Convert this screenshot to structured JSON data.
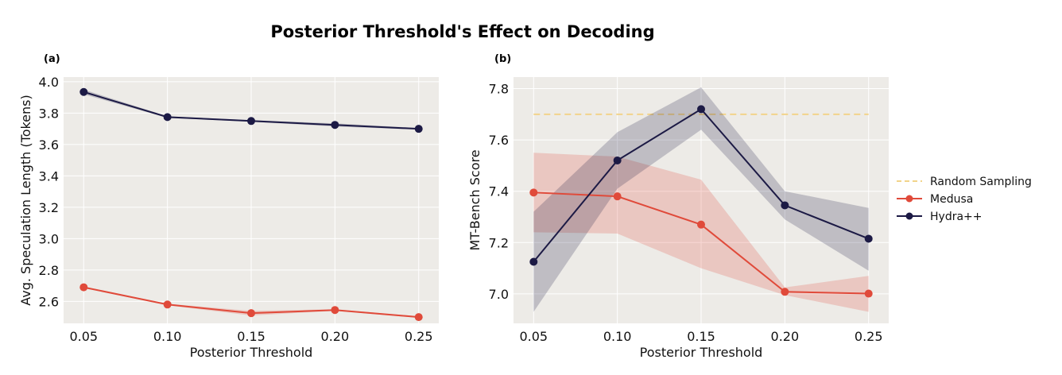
{
  "title": "Posterior Threshold's Effect on Decoding",
  "colors": {
    "medusa": "#e04a3a",
    "hydra": "#1c1a45",
    "random": "#f2d48a",
    "plot_bg": "#edebe7",
    "grid": "#ffffff"
  },
  "legend": {
    "items": [
      {
        "label": "Random Sampling",
        "style": "dashed",
        "color_key": "random"
      },
      {
        "label": "Medusa",
        "style": "line-marker",
        "color_key": "medusa"
      },
      {
        "label": "Hydra++",
        "style": "line-marker",
        "color_key": "hydra"
      }
    ],
    "placement": "right"
  },
  "chart_data": [
    {
      "type": "line",
      "panel_label": "(a)",
      "title": "",
      "xlabel": "Posterior Threshold",
      "ylabel": "Avg. Speculation Length (Tokens)",
      "x": [
        0.05,
        0.1,
        0.15,
        0.2,
        0.25
      ],
      "xticks": [
        "0.05",
        "0.10",
        "0.15",
        "0.20",
        "0.25"
      ],
      "yticks": [
        2.6,
        2.8,
        3.0,
        3.2,
        3.4,
        3.6,
        3.8,
        4.0
      ],
      "ytick_labels": [
        "2.6",
        "2.8",
        "3.0",
        "3.2",
        "3.4",
        "3.6",
        "3.8",
        "4.0"
      ],
      "xlim": [
        0.038,
        0.262
      ],
      "ylim": [
        2.46,
        4.03
      ],
      "grid": true,
      "series": [
        {
          "name": "Medusa",
          "color_key": "medusa",
          "values": [
            2.69,
            2.58,
            2.525,
            2.545,
            2.5
          ],
          "lower": [
            2.685,
            2.575,
            2.51,
            2.54,
            2.495
          ],
          "upper": [
            2.695,
            2.585,
            2.54,
            2.55,
            2.505
          ]
        },
        {
          "name": "Hydra++",
          "color_key": "hydra",
          "values": [
            3.935,
            3.775,
            3.75,
            3.725,
            3.7
          ],
          "lower": [
            3.92,
            3.77,
            3.745,
            3.715,
            3.695
          ],
          "upper": [
            3.95,
            3.78,
            3.755,
            3.735,
            3.705
          ]
        }
      ]
    },
    {
      "type": "line",
      "panel_label": "(b)",
      "title": "",
      "xlabel": "Posterior Threshold",
      "ylabel": "MT-Bench Score",
      "x": [
        0.05,
        0.1,
        0.15,
        0.2,
        0.25
      ],
      "xticks": [
        "0.05",
        "0.10",
        "0.15",
        "0.20",
        "0.25"
      ],
      "yticks": [
        7.0,
        7.2,
        7.4,
        7.6,
        7.8
      ],
      "ytick_labels": [
        "7.0",
        "7.2",
        "7.4",
        "7.6",
        "7.8"
      ],
      "xlim": [
        0.038,
        0.262
      ],
      "ylim": [
        6.885,
        7.845
      ],
      "grid": true,
      "hline": {
        "name": "Random Sampling",
        "color_key": "random",
        "value": 7.7
      },
      "series": [
        {
          "name": "Medusa",
          "color_key": "medusa",
          "values": [
            7.395,
            7.38,
            7.27,
            7.008,
            7.001
          ],
          "lower": [
            7.24,
            7.235,
            7.1,
            6.995,
            6.93
          ],
          "upper": [
            7.55,
            7.535,
            7.445,
            7.025,
            7.07
          ]
        },
        {
          "name": "Hydra++",
          "color_key": "hydra",
          "values": [
            7.125,
            7.52,
            7.72,
            7.345,
            7.215
          ],
          "lower": [
            6.93,
            7.41,
            7.64,
            7.29,
            7.09
          ],
          "upper": [
            7.32,
            7.63,
            7.805,
            7.4,
            7.335
          ]
        }
      ]
    }
  ]
}
